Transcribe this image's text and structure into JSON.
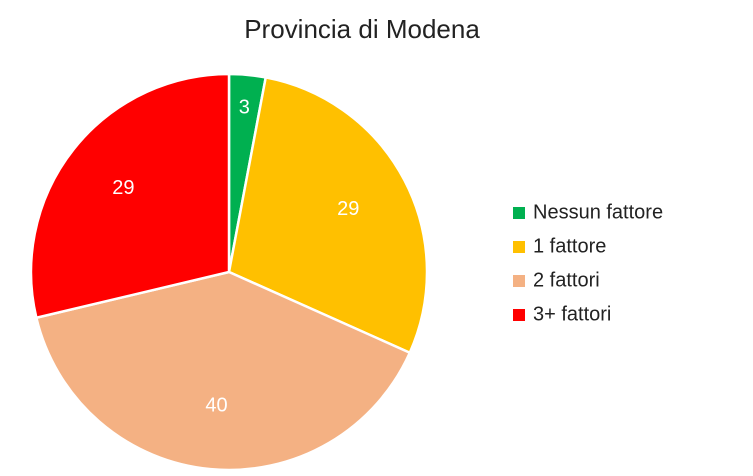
{
  "chart_data": {
    "type": "pie",
    "title": "Provincia di Modena",
    "categories": [
      "Nessun fattore",
      "1 fattore",
      "2 fattori",
      "3+ fattori"
    ],
    "values": [
      3,
      29,
      40,
      29
    ],
    "colors": [
      "#00b050",
      "#ffc000",
      "#f4b183",
      "#ff0000"
    ],
    "legend": "right"
  }
}
